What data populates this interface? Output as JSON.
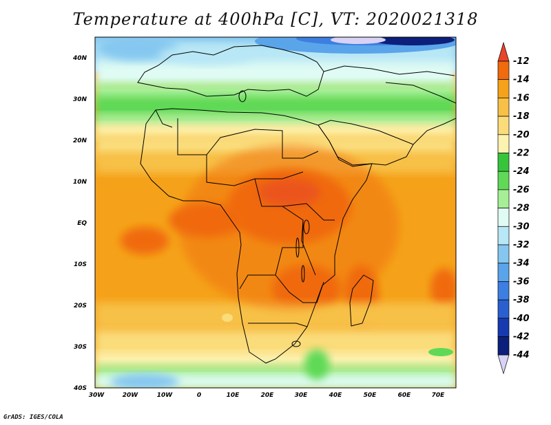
{
  "title": "Temperature at 400hPa [C], VT: 2020021318",
  "credit": "GrADS: IGES/COLA",
  "map": {
    "lat_labels": [
      "40N",
      "30N",
      "20N",
      "10N",
      "EQ",
      "10S",
      "20S",
      "30S",
      "40S"
    ],
    "lon_labels": [
      "30W",
      "20W",
      "10W",
      "0",
      "10E",
      "20E",
      "30E",
      "40E",
      "50E",
      "60E",
      "70E"
    ],
    "extent": {
      "lon_min": -30,
      "lon_max": 75,
      "lat_min": -40,
      "lat_max": 45
    }
  },
  "colorbar": {
    "labels": [
      "-12",
      "-14",
      "-16",
      "-18",
      "-20",
      "-22",
      "-24",
      "-26",
      "-28",
      "-30",
      "-32",
      "-34",
      "-36",
      "-38",
      "-40",
      "-42",
      "-44"
    ],
    "colors": [
      "#e8442a",
      "#f06a0e",
      "#f5a21a",
      "#f7c046",
      "#fadc7a",
      "#fdf3b0",
      "#36c53a",
      "#5fd957",
      "#a6ef96",
      "#dffbf4",
      "#b8e7f5",
      "#85c7f0",
      "#5aa4ea",
      "#3d7fe0",
      "#2a5fd0",
      "#173ab0",
      "#0c1f7a",
      "#d8d2f5"
    ]
  }
}
